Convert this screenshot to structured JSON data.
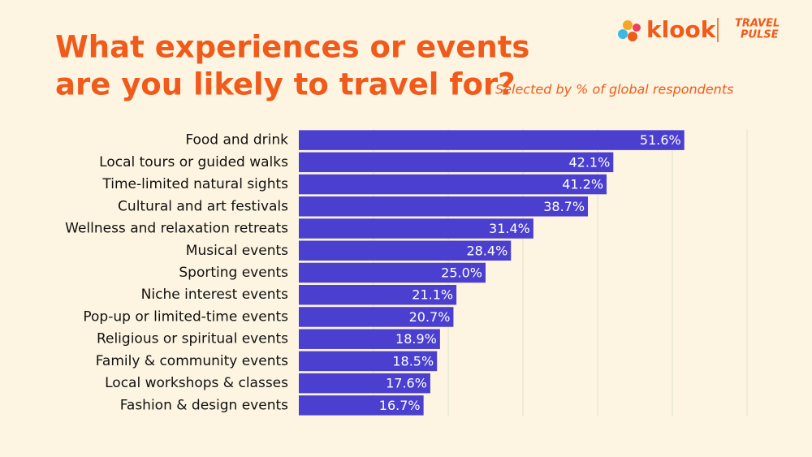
{
  "chart_data": {
    "type": "bar",
    "orientation": "horizontal",
    "title_lines": [
      "What experiences or events",
      "are you likely to travel for?"
    ],
    "subtitle": "Selected by % of global respondents",
    "brand": "klook",
    "partner": [
      "TRAVEL",
      "PULSE"
    ],
    "categories": [
      "Food and drink",
      "Local tours or guided walks",
      "Time-limited natural sights",
      "Cultural and art festivals",
      "Wellness and relaxation retreats",
      "Musical events",
      "Sporting events",
      "Niche interest events",
      "Pop-up or limited-time events",
      "Religious or spiritual events",
      "Family & community events",
      "Local workshops & classes",
      "Fashion & design events"
    ],
    "values": [
      51.6,
      42.1,
      41.2,
      38.7,
      31.4,
      28.4,
      25.0,
      21.1,
      20.7,
      18.9,
      18.5,
      17.6,
      16.7
    ],
    "value_labels": [
      "51.6%",
      "42.1%",
      "41.2%",
      "38.7%",
      "31.4%",
      "28.4%",
      "25.0%",
      "21.1%",
      "20.7%",
      "18.9%",
      "18.5%",
      "17.6%",
      "16.7%"
    ],
    "color": "#4b3fd0",
    "xlim": [
      0,
      60
    ],
    "xticks": [
      10,
      20,
      30,
      40,
      50,
      60
    ],
    "grid": true
  }
}
